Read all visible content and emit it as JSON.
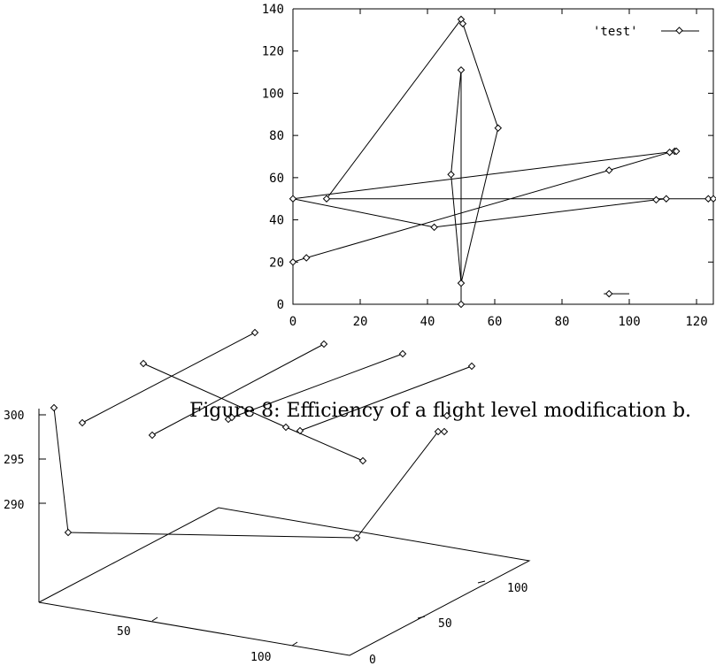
{
  "chart_data": [
    {
      "type": "line",
      "title": "",
      "xlabel": "",
      "ylabel": "",
      "xlim": [
        0,
        125
      ],
      "ylim": [
        0,
        140
      ],
      "x_ticks": [
        "0",
        "20",
        "40",
        "60",
        "80",
        "100",
        "120"
      ],
      "y_ticks": [
        "0",
        "20",
        "40",
        "60",
        "80",
        "100",
        "120",
        "140"
      ],
      "legend": {
        "position": "top-right",
        "entries": [
          "'test'"
        ]
      },
      "series": [
        {
          "name": "'test'",
          "points": [
            [
              0,
              20
            ],
            [
              4,
              22
            ],
            [
              94,
              63.5
            ],
            [
              112,
              72
            ],
            [
              113.5,
              72.5
            ],
            [
              114,
              72.5
            ],
            [
              0,
              50
            ],
            [
              42,
              36.5
            ],
            [
              108,
              49.5
            ],
            [
              111,
              50
            ],
            [
              123.5,
              50
            ],
            [
              125,
              50
            ],
            [
              10,
              50
            ],
            [
              50,
              135
            ],
            [
              50.5,
              133
            ],
            [
              61,
              83.5
            ],
            [
              50,
              10
            ],
            [
              47,
              61.5
            ],
            [
              50,
              111
            ],
            [
              50,
              0
            ]
          ]
        }
      ],
      "extra_marks": [
        {
          "type": "marker-with-line",
          "x": 94,
          "y": 5,
          "line_to_x": 100
        }
      ]
    },
    {
      "type": "scatter",
      "subtype": "3d-line",
      "title": "",
      "z_ticks": [
        "290",
        "295",
        "300"
      ],
      "x_ticks": [
        "50",
        "100"
      ],
      "y_ticks": [
        "0",
        "50",
        "100"
      ],
      "zlim": [
        286,
        301
      ]
    }
  ],
  "caption": "Figure 8: Efficiency of a flight level modification b."
}
